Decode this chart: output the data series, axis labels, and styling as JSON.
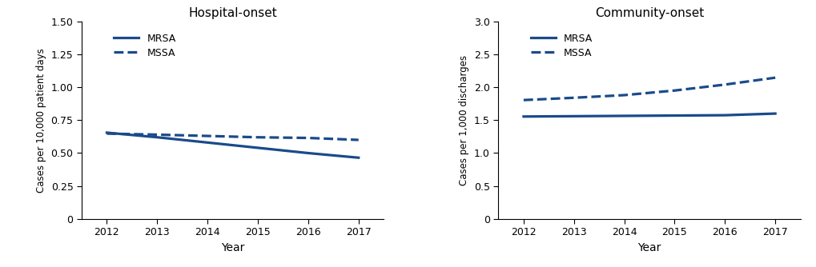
{
  "years": [
    2012,
    2013,
    2014,
    2015,
    2016,
    2017
  ],
  "hospital": {
    "title": "Hospital-onset",
    "ylabel": "Cases per 10,000 patient days",
    "ylim": [
      0,
      1.5
    ],
    "yticks": [
      0,
      0.25,
      0.5,
      0.75,
      1.0,
      1.25,
      1.5
    ],
    "ytick_labels": [
      "0",
      "0.25",
      "0.50",
      "0.75",
      "1.00",
      "1.25",
      "1.50"
    ],
    "mrsa": [
      0.655,
      0.62,
      0.58,
      0.54,
      0.5,
      0.465
    ],
    "mssa": [
      0.648,
      0.64,
      0.63,
      0.62,
      0.615,
      0.6
    ]
  },
  "community": {
    "title": "Community-onset",
    "ylabel": "Cases per 1,000 discharges",
    "ylim": [
      0,
      3.0
    ],
    "yticks": [
      0,
      0.5,
      1.0,
      1.5,
      2.0,
      2.5,
      3.0
    ],
    "ytick_labels": [
      "0",
      "0.5",
      "1.0",
      "1.5",
      "2.0",
      "2.5",
      "3.0"
    ],
    "mrsa": [
      1.555,
      1.56,
      1.565,
      1.57,
      1.575,
      1.6
    ],
    "mssa": [
      1.805,
      1.84,
      1.88,
      1.95,
      2.04,
      2.145
    ]
  },
  "line_color": "#1a4a8a",
  "xlabel": "Year",
  "legend_mrsa": "MRSA",
  "legend_mssa": "MSSA",
  "linewidth": 2.3,
  "fig_width": 10.2,
  "fig_height": 3.34,
  "dpi": 100
}
